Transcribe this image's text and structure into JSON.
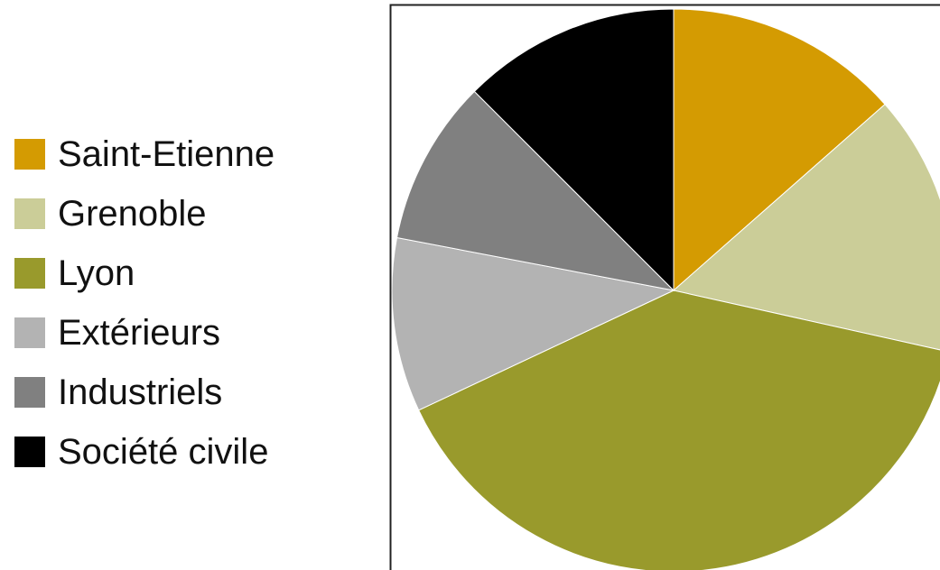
{
  "chart_data": {
    "type": "pie",
    "legend_position": "left",
    "start_angle": "12 o'clock",
    "direction": "clockwise",
    "slices": [
      {
        "label": "Saint-Etienne",
        "value": 13.5,
        "color": "#D49B02"
      },
      {
        "label": "Grenoble",
        "value": 15.0,
        "color": "#CBCD98"
      },
      {
        "label": "Lyon",
        "value": 39.5,
        "color": "#999A2C"
      },
      {
        "label": "Extérieurs",
        "value": 10.0,
        "color": "#B3B3B3"
      },
      {
        "label": "Industriels",
        "value": 9.5,
        "color": "#808080"
      },
      {
        "label": "Société civile",
        "value": 12.5,
        "color": "#000000"
      }
    ]
  }
}
